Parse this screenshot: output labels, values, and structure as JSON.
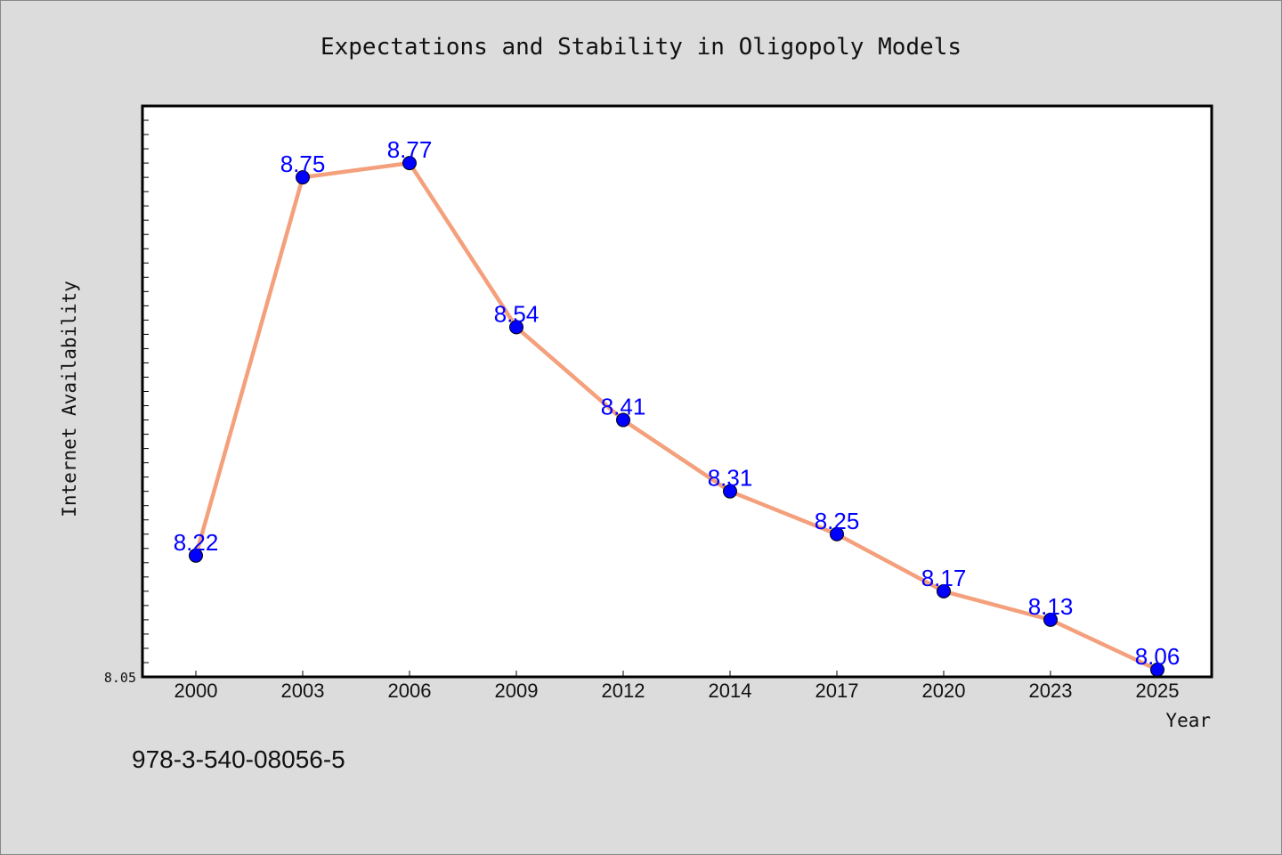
{
  "chart_data": {
    "type": "line",
    "title": "Expectations and Stability in Oligopoly Models",
    "xlabel": "Year",
    "ylabel": "Internet Availability",
    "categories": [
      "2000",
      "2003",
      "2006",
      "2009",
      "2012",
      "2014",
      "2017",
      "2020",
      "2023",
      "2025"
    ],
    "series": [
      {
        "values": [
          8.22,
          8.75,
          8.77,
          8.54,
          8.41,
          8.31,
          8.25,
          8.17,
          8.13,
          8.06
        ],
        "labels": [
          "8.22",
          "8.75",
          "8.77",
          "8.54",
          "8.41",
          "8.31",
          "8.25",
          "8.17",
          "8.13",
          "8.06"
        ]
      }
    ],
    "ylim": [
      8.05,
      8.85
    ],
    "yticks_labeled": [
      "8.05"
    ],
    "grid": false,
    "colors": {
      "line": "#f4a07c",
      "marker": "#0000ff",
      "data_label": "#0000ff"
    }
  },
  "footer": {
    "isbn": "978-3-540-08056-5"
  }
}
